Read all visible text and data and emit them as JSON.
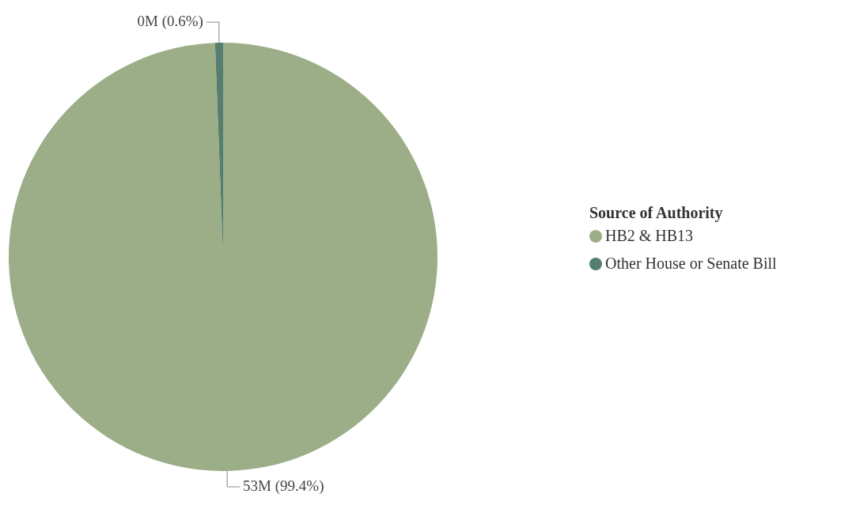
{
  "chart_data": {
    "type": "pie",
    "legend_title": "Source of Authority",
    "legend": "right",
    "categories": [
      "HB2 & HB13",
      "Other House or Senate Bill"
    ],
    "values": [
      99.4,
      0.6
    ],
    "colors": [
      "#9bae88",
      "#567e6e"
    ],
    "value_labels": [
      "53M (99.4%)",
      "0M (0.6%)"
    ]
  }
}
